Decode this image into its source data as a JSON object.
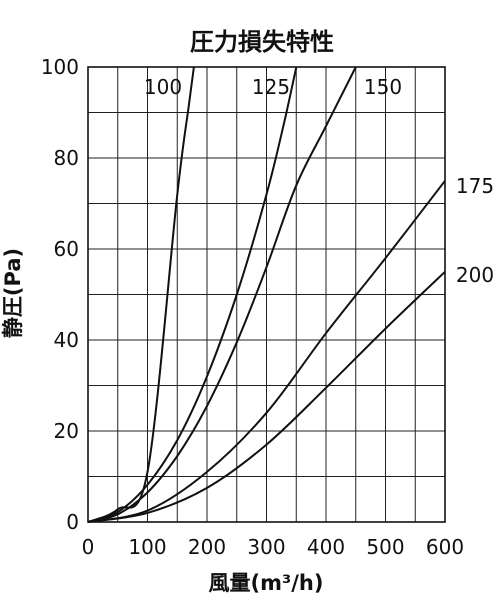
{
  "chart_data": {
    "type": "line",
    "title": "圧力損失特性",
    "xlabel": "風量(m³/h)",
    "ylabel": "静圧(Pa)",
    "xlim": [
      0,
      600
    ],
    "ylim": [
      0,
      100
    ],
    "xticks": [
      "0",
      "100",
      "200",
      "300",
      "400",
      "500",
      "600"
    ],
    "yticks": [
      "0",
      "20",
      "40",
      "60",
      "80",
      "100"
    ],
    "x_grid_step": 50,
    "y_grid_step": 10,
    "grid": true,
    "legend": "none",
    "series": [
      {
        "name": "100",
        "points": [
          [
            0,
            0
          ],
          [
            50,
            2.8
          ],
          [
            100,
            11
          ],
          [
            150,
            72
          ],
          [
            170,
            92
          ],
          [
            178,
            100
          ]
        ]
      },
      {
        "name": "125",
        "points": [
          [
            0,
            0
          ],
          [
            50,
            2.2
          ],
          [
            100,
            8.2
          ],
          [
            150,
            18
          ],
          [
            200,
            32
          ],
          [
            250,
            50
          ],
          [
            300,
            72
          ],
          [
            330,
            88
          ],
          [
            350,
            100
          ]
        ]
      },
      {
        "name": "150",
        "points": [
          [
            0,
            0
          ],
          [
            50,
            1.7
          ],
          [
            100,
            6.5
          ],
          [
            150,
            14.5
          ],
          [
            200,
            25.5
          ],
          [
            250,
            39.5
          ],
          [
            300,
            56
          ],
          [
            350,
            74
          ],
          [
            400,
            87
          ],
          [
            450,
            100
          ]
        ]
      },
      {
        "name": "175",
        "points": [
          [
            0,
            0
          ],
          [
            100,
            2.5
          ],
          [
            200,
            11
          ],
          [
            300,
            24
          ],
          [
            400,
            41.5
          ],
          [
            500,
            58
          ],
          [
            600,
            75
          ]
        ]
      },
      {
        "name": "200",
        "points": [
          [
            0,
            0
          ],
          [
            100,
            2
          ],
          [
            200,
            7.5
          ],
          [
            300,
            17
          ],
          [
            400,
            29.5
          ],
          [
            500,
            42.5
          ],
          [
            600,
            55
          ]
        ]
      }
    ]
  }
}
